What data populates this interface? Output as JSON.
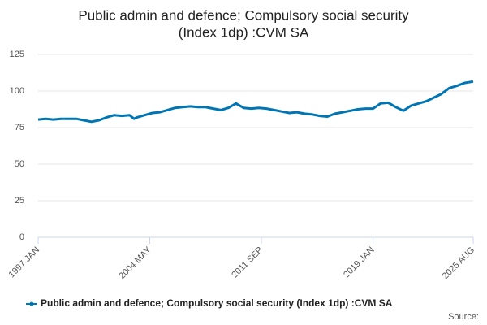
{
  "chart_data": {
    "type": "line",
    "title": [
      "Public admin and defence; Compulsory social security",
      "(Index 1dp) :CVM SA"
    ],
    "source": "Source:",
    "x": [
      1997.0,
      1997.5,
      1998.0,
      1998.5,
      1999.0,
      1999.5,
      2000.0,
      2000.5,
      2001.0,
      2001.5,
      2002.0,
      2002.5,
      2003.0,
      2003.3,
      2003.5,
      2004.0,
      2004.5,
      2005.0,
      2005.5,
      2006.0,
      2006.5,
      2007.0,
      2007.5,
      2008.0,
      2008.5,
      2009.0,
      2009.5,
      2010.0,
      2010.5,
      2011.0,
      2011.5,
      2012.0,
      2012.5,
      2013.0,
      2013.5,
      2014.0,
      2014.5,
      2015.0,
      2015.5,
      2016.0,
      2016.5,
      2017.0,
      2017.5,
      2018.0,
      2018.5,
      2019.0,
      2019.5,
      2020.0,
      2020.5,
      2021.0,
      2021.5,
      2022.0,
      2022.5,
      2023.0,
      2023.5,
      2024.0,
      2024.5,
      2025.0,
      2025.583
    ],
    "series": [
      {
        "name": "Public admin and defence; Compulsory social security (Index 1dp) :CVM SA",
        "color": "#0075b4",
        "values": [
          80.5,
          81,
          80.5,
          81,
          81,
          81,
          80,
          79,
          80,
          82,
          83.5,
          83,
          83.5,
          81,
          82,
          83.5,
          85,
          85.5,
          87,
          88.5,
          89,
          89.5,
          89,
          89,
          88,
          87,
          88.5,
          91.5,
          88.5,
          88,
          88.5,
          88,
          87,
          86,
          85,
          85.5,
          84.5,
          84,
          83,
          82.5,
          84.5,
          85.5,
          86.5,
          87.5,
          88,
          88,
          91.5,
          92,
          89,
          86.5,
          90,
          91.5,
          93,
          95.5,
          98,
          102,
          103.5,
          105.5,
          106.5
        ]
      }
    ],
    "xlim": [
      1997.0,
      2025.583
    ],
    "xticks": [
      {
        "value": 1997.0,
        "label": "1997 JAN"
      },
      {
        "value": 2004.333,
        "label": "2004 MAY"
      },
      {
        "value": 2011.667,
        "label": "2011 SEP"
      },
      {
        "value": 2019.0,
        "label": "2019 JAN"
      },
      {
        "value": 2025.583,
        "label": "2025 AUG"
      }
    ],
    "ylim": [
      0,
      125
    ],
    "yticks": [
      0,
      25,
      50,
      75,
      100,
      125
    ],
    "grid": true
  }
}
